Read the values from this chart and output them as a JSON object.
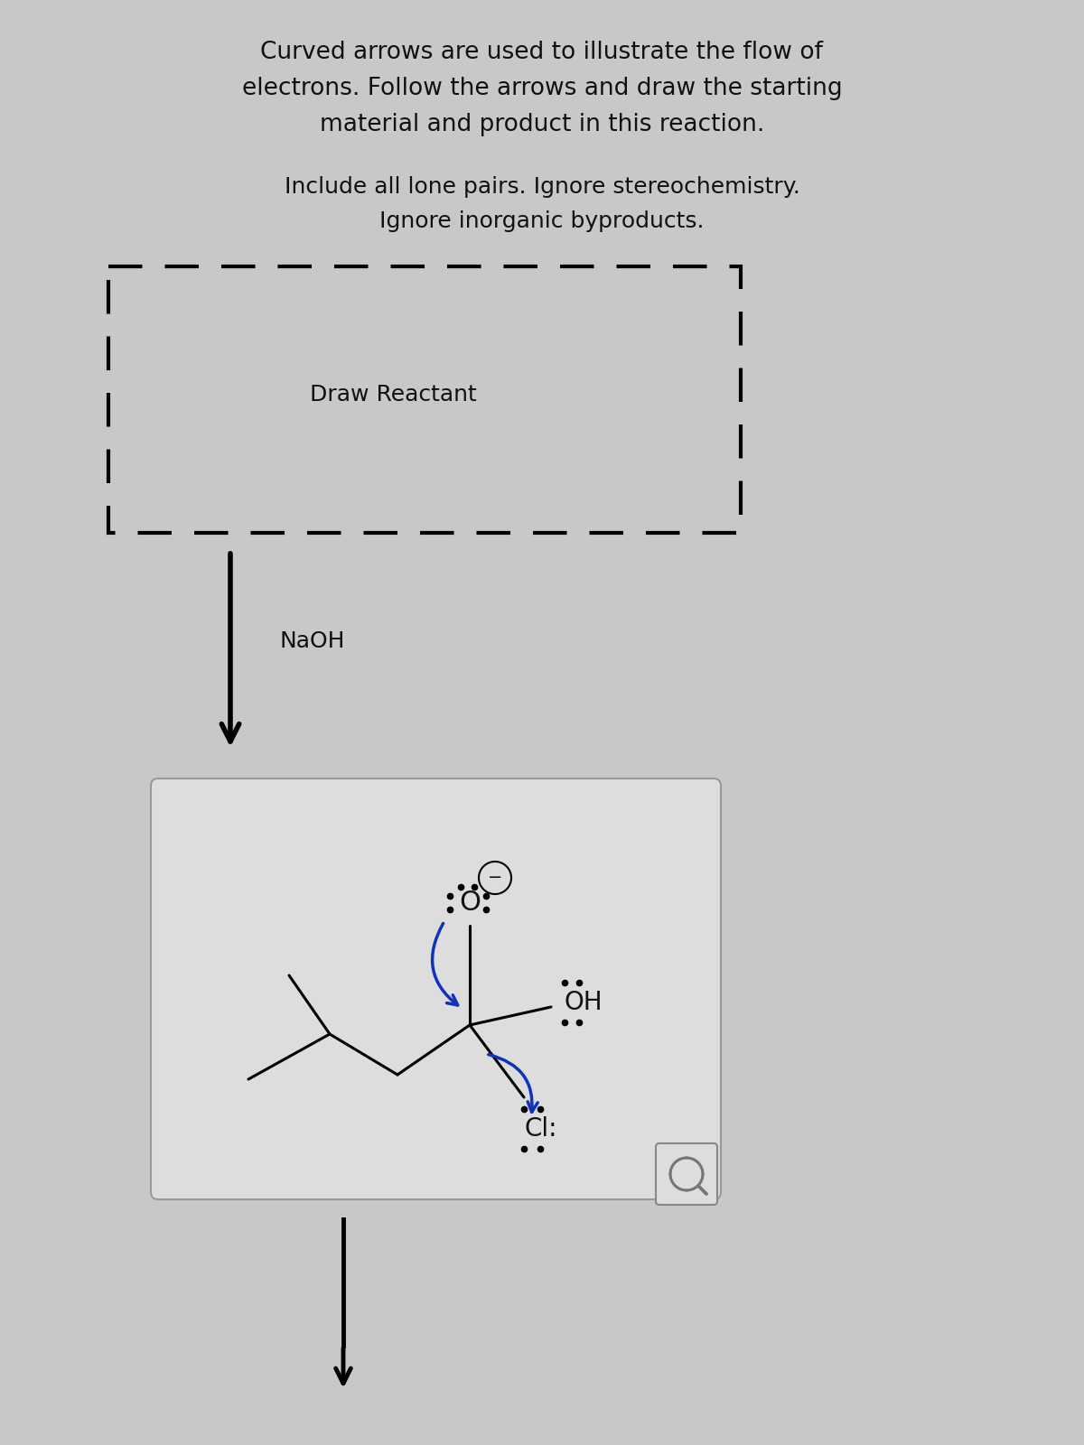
{
  "title_line1": "Curved arrows are used to illustrate the flow of",
  "title_line2": "electrons. Follow the arrows and draw the starting",
  "title_line3": "material and product in this reaction.",
  "subtitle_line1": "Include all lone pairs. Ignore stereochemistry.",
  "subtitle_line2": "Ignore inorganic byproducts.",
  "draw_reactant_label": "Draw Reactant",
  "naoh_label": "NaOH",
  "background_color": "#c8c8c8",
  "text_color": "#111111",
  "title_fontsize": 19,
  "subtitle_fontsize": 18,
  "struct_fontsize": 20
}
